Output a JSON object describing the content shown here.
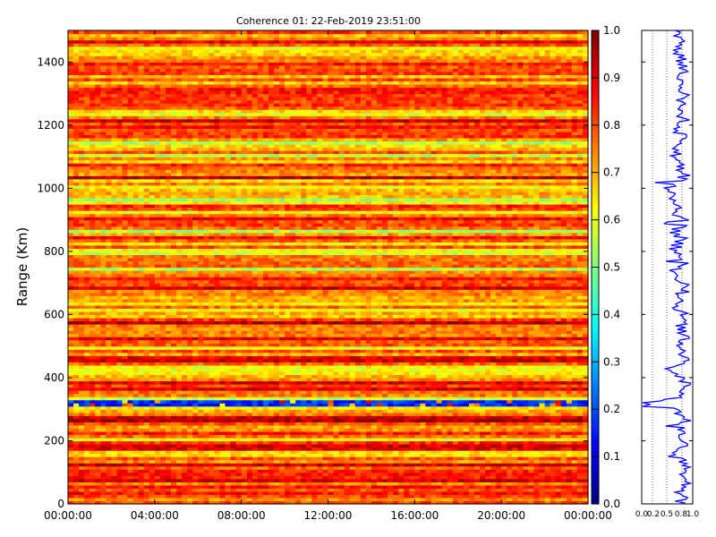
{
  "chart_data": [
    {
      "type": "heatmap",
      "title": "Coherence 01: 22-Feb-2019 23:51:00",
      "ylabel": "Range (Km)",
      "xlabel": "",
      "x_tick_labels": [
        "00:00:00",
        "04:00:00",
        "08:00:00",
        "12:00:00",
        "16:00:00",
        "20:00:00",
        "00:00:00"
      ],
      "y_ticks": [
        0,
        200,
        400,
        600,
        800,
        1000,
        1200,
        1400
      ],
      "ylim": [
        0,
        1500
      ],
      "colormap": "jet",
      "range_profile_km": [
        0,
        20,
        40,
        60,
        80,
        100,
        120,
        140,
        160,
        180,
        200,
        220,
        240,
        260,
        280,
        300,
        320,
        340,
        360,
        380,
        400,
        420,
        440,
        460,
        480,
        500,
        520,
        540,
        560,
        580,
        600,
        620,
        640,
        660,
        680,
        700,
        720,
        740,
        760,
        780,
        800,
        820,
        840,
        860,
        880,
        900,
        920,
        940,
        960,
        980,
        1000,
        1020,
        1040,
        1060,
        1080,
        1100,
        1120,
        1140,
        1160,
        1180,
        1200,
        1220,
        1240,
        1260,
        1280,
        1300,
        1320,
        1340,
        1360,
        1380,
        1400,
        1420,
        1440,
        1460,
        1480,
        1500
      ],
      "mean_coherence": [
        0.75,
        0.8,
        0.7,
        0.85,
        0.8,
        0.75,
        0.85,
        0.8,
        0.7,
        0.85,
        0.7,
        0.8,
        0.75,
        0.85,
        0.8,
        0.7,
        0.1,
        0.8,
        0.75,
        0.85,
        0.8,
        0.45,
        0.75,
        0.85,
        0.8,
        0.7,
        0.85,
        0.8,
        0.75,
        0.85,
        0.8,
        0.7,
        0.8,
        0.75,
        0.85,
        0.8,
        0.75,
        0.65,
        0.8,
        0.75,
        0.6,
        0.7,
        0.8,
        0.65,
        0.75,
        0.85,
        0.65,
        0.75,
        0.6,
        0.7,
        0.55,
        0.75,
        0.85,
        0.8,
        0.75,
        0.6,
        0.75,
        0.65,
        0.8,
        0.7,
        0.75,
        0.85,
        0.7,
        0.8,
        0.75,
        0.85,
        0.7,
        0.8,
        0.75,
        0.85,
        0.8,
        0.75,
        0.7,
        0.8,
        0.65,
        0.75
      ]
    },
    {
      "type": "colorbar",
      "ticks": [
        "0.0",
        "0.1",
        "0.2",
        "0.3",
        "0.4",
        "0.5",
        "0.6",
        "0.7",
        "0.8",
        "0.9",
        "1.0"
      ]
    },
    {
      "type": "line",
      "x_tick_labels": [
        "0.0",
        "0.2",
        "0.5",
        "0.8",
        "1.0"
      ],
      "xlim": [
        0,
        1
      ],
      "ylim": [
        0,
        1500
      ]
    }
  ]
}
